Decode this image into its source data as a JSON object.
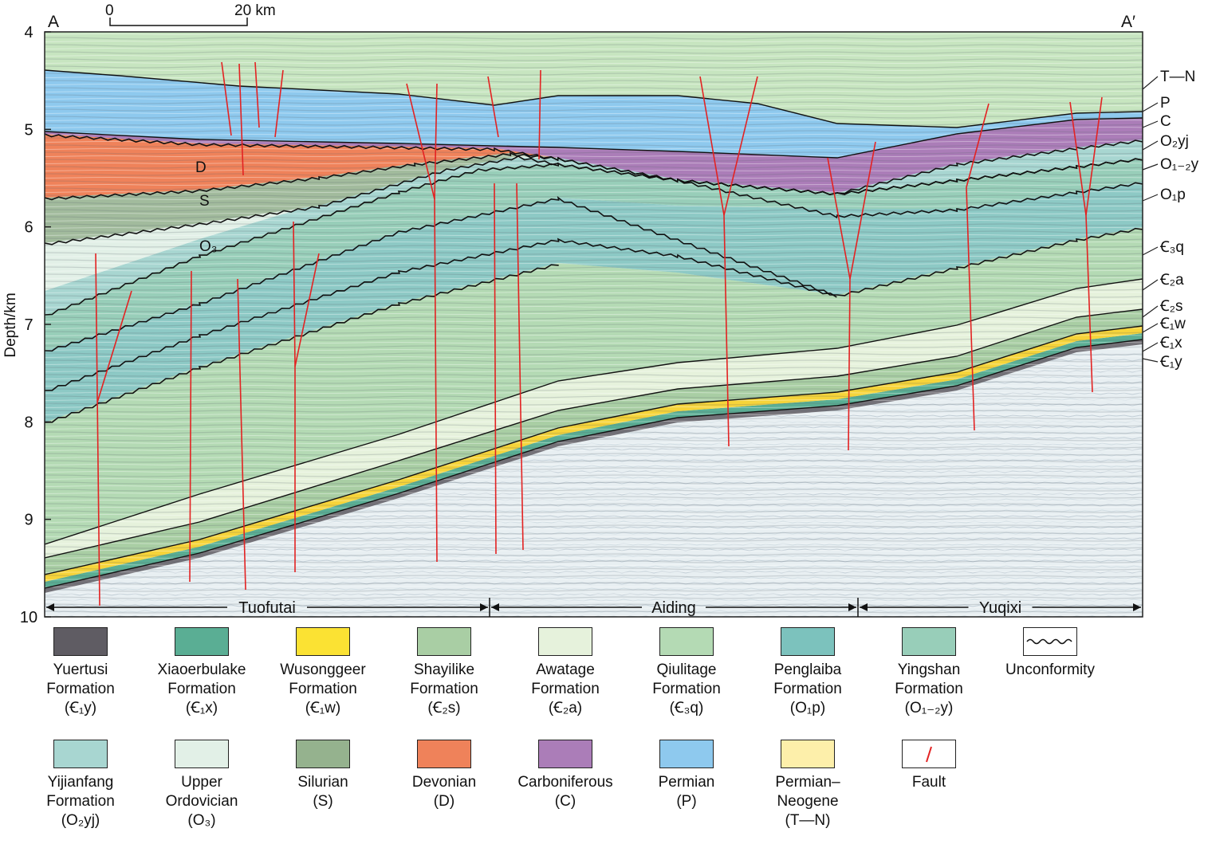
{
  "header": {
    "end_left": "A",
    "end_right": "A′",
    "scale_start": "0",
    "scale_end": "20 km"
  },
  "axis": {
    "ylabel": "Depth/km",
    "ticks": [
      "4",
      "5",
      "6",
      "7",
      "8",
      "9",
      "10"
    ]
  },
  "left_labels": {
    "devonian": "D",
    "silurian": "S",
    "upper_ordovician": "O₃"
  },
  "right_labels": [
    "T—N",
    "P",
    "C",
    "O₂yj",
    "O₁₋₂y",
    "O₁p",
    "Ꞓ₃q",
    "Ꞓ₂a",
    "Ꞓ₂s",
    "Ꞓ₁w",
    "Ꞓ₁x",
    "Ꞓ₁y"
  ],
  "zones": [
    "Tuofutai",
    "Aiding",
    "Yuqixi"
  ],
  "legend": [
    {
      "name": "Yuertusi\nFormation\n(Ꞓ₁y)",
      "color": "#5f5c63",
      "icon": "fill-swatch"
    },
    {
      "name": "Xiaoerbulake\nFormation\n(Ꞓ₁x)",
      "color": "#5aae94",
      "icon": "fill-swatch"
    },
    {
      "name": "Wusonggeer\nFormation\n(Ꞓ₁w)",
      "color": "#fbe233",
      "icon": "fill-swatch"
    },
    {
      "name": "Shayilike\nFormation\n(Ꞓ₂s)",
      "color": "#a9cea4",
      "icon": "fill-swatch"
    },
    {
      "name": "Awatage\nFormation\n(Ꞓ₂a)",
      "color": "#e6f2dc",
      "icon": "fill-swatch"
    },
    {
      "name": "Qiulitage\nFormation\n(Ꞓ₃q)",
      "color": "#b4dab4",
      "icon": "fill-swatch"
    },
    {
      "name": "Penglaiba\nFormation\n(O₁p)",
      "color": "#7cc2bd",
      "icon": "fill-swatch"
    },
    {
      "name": "Yingshan\nFormation\n(O₁₋₂y)",
      "color": "#98ceb9",
      "icon": "fill-swatch"
    },
    {
      "name": "Unconformity",
      "color": "#ffffff",
      "icon": "unconformity-symbol"
    },
    {
      "name": "Yijianfang\nFormation\n(O₂yj)",
      "color": "#a8d6d1",
      "icon": "fill-swatch"
    },
    {
      "name": "Upper\nOrdovician\n(O₃)",
      "color": "#e2f0e7",
      "icon": "fill-swatch"
    },
    {
      "name": "Silurian\n(S)",
      "color": "#95b28e",
      "icon": "fill-swatch"
    },
    {
      "name": "Devonian\n(D)",
      "color": "#ef825a",
      "icon": "fill-swatch"
    },
    {
      "name": "Carboniferous\n(C)",
      "color": "#ab7db8",
      "icon": "fill-swatch"
    },
    {
      "name": "Permian\n(P)",
      "color": "#8ec9ee",
      "icon": "fill-swatch"
    },
    {
      "name": "Permian–\nNeogene\n(T—N)",
      "color": "#fdefaa",
      "icon": "fill-swatch"
    },
    {
      "name": "Fault",
      "color": "#e32222",
      "icon": "fault-symbol"
    }
  ]
}
